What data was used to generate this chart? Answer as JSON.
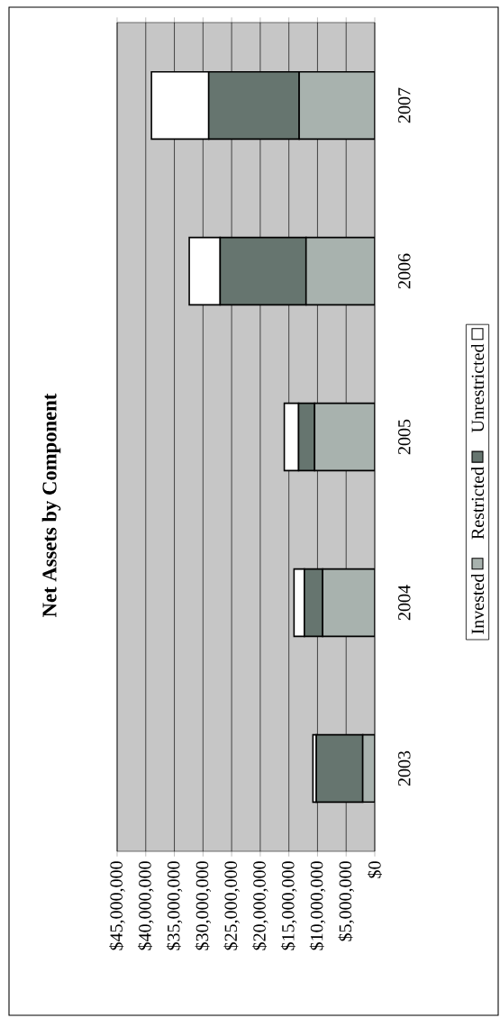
{
  "chart_data": {
    "type": "bar",
    "title": "Net Assets by Component",
    "stacked": true,
    "orientation": "horizontal",
    "categories": [
      "2007",
      "2006",
      "2005",
      "2004",
      "2003"
    ],
    "series": [
      {
        "name": "Invested",
        "color": "#a8b2ae",
        "values": [
          13200000,
          12000000,
          10500000,
          9100000,
          2100000
        ]
      },
      {
        "name": "Restricted",
        "color": "#66756f",
        "values": [
          15800000,
          15000000,
          2800000,
          3200000,
          8100000
        ]
      },
      {
        "name": "Unrestricted",
        "color": "#ffffff",
        "values": [
          10000000,
          5400000,
          2500000,
          1800000,
          600000
        ]
      }
    ],
    "xlim": [
      45000000,
      0
    ],
    "xticks": [
      {
        "value": 0,
        "label": "$0"
      },
      {
        "value": 5000000,
        "label": "$5,000,000"
      },
      {
        "value": 10000000,
        "label": "$10,000,000"
      },
      {
        "value": 15000000,
        "label": "$15,000,000"
      },
      {
        "value": 20000000,
        "label": "$20,000,000"
      },
      {
        "value": 25000000,
        "label": "$25,000,000"
      },
      {
        "value": 30000000,
        "label": "$30,000,000"
      },
      {
        "value": 35000000,
        "label": "$35,000,000"
      },
      {
        "value": 40000000,
        "label": "$40,000,000"
      },
      {
        "value": 45000000,
        "label": "$45,000,000"
      }
    ],
    "grid": "x",
    "legend": "right"
  }
}
